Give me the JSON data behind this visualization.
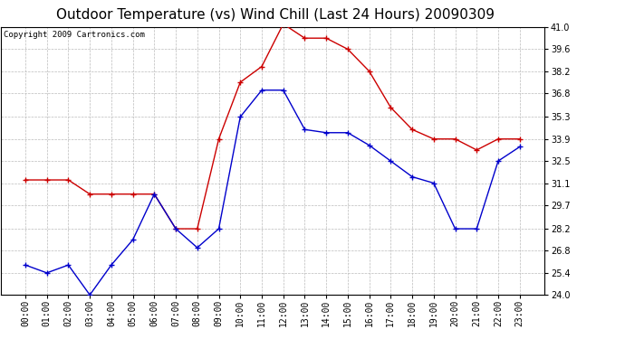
{
  "title": "Outdoor Temperature (vs) Wind Chill (Last 24 Hours) 20090309",
  "copyright": "Copyright 2009 Cartronics.com",
  "hours": [
    "00:00",
    "01:00",
    "02:00",
    "03:00",
    "04:00",
    "05:00",
    "06:00",
    "07:00",
    "08:00",
    "09:00",
    "10:00",
    "11:00",
    "12:00",
    "13:00",
    "14:00",
    "15:00",
    "16:00",
    "17:00",
    "18:00",
    "19:00",
    "20:00",
    "21:00",
    "22:00",
    "23:00"
  ],
  "temp": [
    31.3,
    31.3,
    31.3,
    30.4,
    30.4,
    30.4,
    30.4,
    28.2,
    28.2,
    33.9,
    37.5,
    38.5,
    41.2,
    40.3,
    40.3,
    39.6,
    38.2,
    35.9,
    34.5,
    33.9,
    33.9,
    33.2,
    33.9,
    33.9
  ],
  "wind_chill": [
    25.9,
    25.4,
    25.9,
    24.0,
    25.9,
    27.5,
    30.4,
    28.2,
    27.0,
    28.2,
    35.3,
    37.0,
    37.0,
    34.5,
    34.3,
    34.3,
    33.5,
    32.5,
    31.5,
    31.1,
    28.2,
    28.2,
    32.5,
    33.4
  ],
  "temp_color": "#cc0000",
  "wind_chill_color": "#0000cc",
  "ylim_min": 24.0,
  "ylim_max": 41.0,
  "yticks": [
    24.0,
    25.4,
    26.8,
    28.2,
    29.7,
    31.1,
    32.5,
    33.9,
    35.3,
    36.8,
    38.2,
    39.6,
    41.0
  ],
  "background_color": "#ffffff",
  "plot_bg_color": "#ffffff",
  "grid_color": "#bbbbbb",
  "title_fontsize": 11,
  "copyright_fontsize": 6.5,
  "tick_fontsize": 7,
  "marker_size": 4,
  "line_width": 1.0
}
